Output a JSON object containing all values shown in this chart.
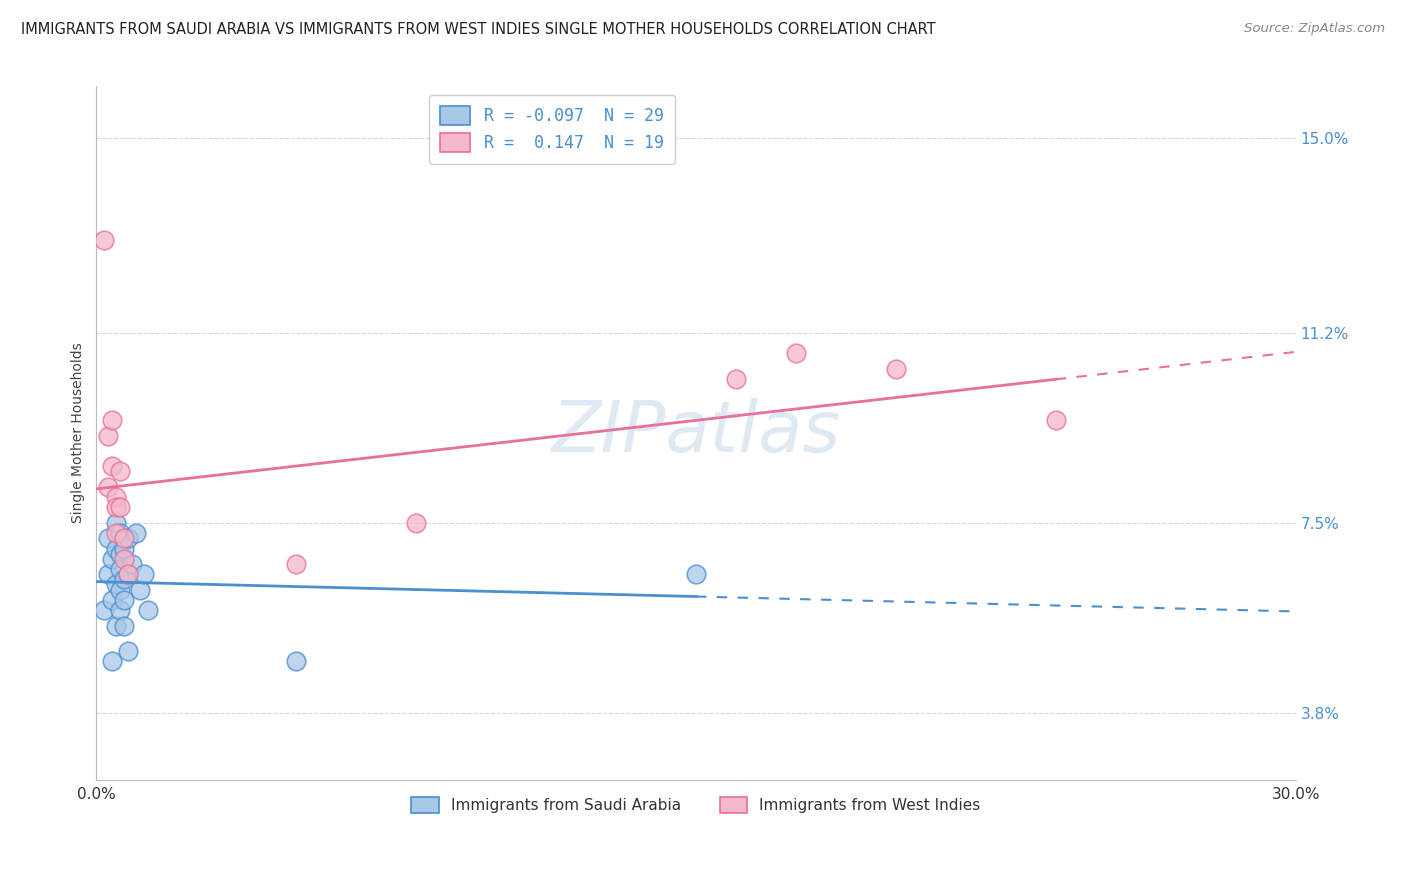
{
  "title": "IMMIGRANTS FROM SAUDI ARABIA VS IMMIGRANTS FROM WEST INDIES SINGLE MOTHER HOUSEHOLDS CORRELATION CHART",
  "source": "Source: ZipAtlas.com",
  "ylabel": "Single Mother Households",
  "xlim": [
    0.0,
    0.3
  ],
  "ylim": [
    0.025,
    0.16
  ],
  "yticks": [
    0.038,
    0.075,
    0.112,
    0.15
  ],
  "ytick_labels": [
    "3.8%",
    "7.5%",
    "11.2%",
    "15.0%"
  ],
  "xticks": [
    0.0,
    0.3
  ],
  "xtick_labels": [
    "0.0%",
    "30.0%"
  ],
  "saudi_scatter_color": "#a8c8e8",
  "westindies_scatter_color": "#f4b8c8",
  "saudi_line_color": "#4a8fd0",
  "westindies_line_color": "#e8709a",
  "background_color": "#ffffff",
  "grid_color": "#cccccc",
  "watermark": "ZIPatlas",
  "r_saudi": -0.097,
  "n_saudi": 29,
  "r_westindies": 0.147,
  "n_westindies": 19,
  "saudi_x": [
    0.002,
    0.003,
    0.003,
    0.004,
    0.004,
    0.004,
    0.005,
    0.005,
    0.005,
    0.005,
    0.006,
    0.006,
    0.006,
    0.006,
    0.006,
    0.007,
    0.007,
    0.007,
    0.007,
    0.008,
    0.008,
    0.008,
    0.009,
    0.01,
    0.011,
    0.012,
    0.013,
    0.05,
    0.15
  ],
  "saudi_y": [
    0.058,
    0.065,
    0.072,
    0.06,
    0.068,
    0.048,
    0.063,
    0.07,
    0.075,
    0.055,
    0.062,
    0.069,
    0.058,
    0.073,
    0.066,
    0.06,
    0.055,
    0.07,
    0.064,
    0.065,
    0.072,
    0.05,
    0.067,
    0.073,
    0.062,
    0.065,
    0.058,
    0.048,
    0.065
  ],
  "westindies_x": [
    0.002,
    0.003,
    0.003,
    0.004,
    0.004,
    0.005,
    0.005,
    0.005,
    0.006,
    0.006,
    0.007,
    0.007,
    0.008,
    0.05,
    0.08,
    0.16,
    0.175,
    0.2,
    0.24
  ],
  "westindies_y": [
    0.13,
    0.092,
    0.082,
    0.086,
    0.095,
    0.08,
    0.078,
    0.073,
    0.085,
    0.078,
    0.072,
    0.068,
    0.065,
    0.067,
    0.075,
    0.103,
    0.108,
    0.105,
    0.095
  ],
  "bottom_legend_labels": [
    "Immigrants from Saudi Arabia",
    "Immigrants from West Indies"
  ]
}
